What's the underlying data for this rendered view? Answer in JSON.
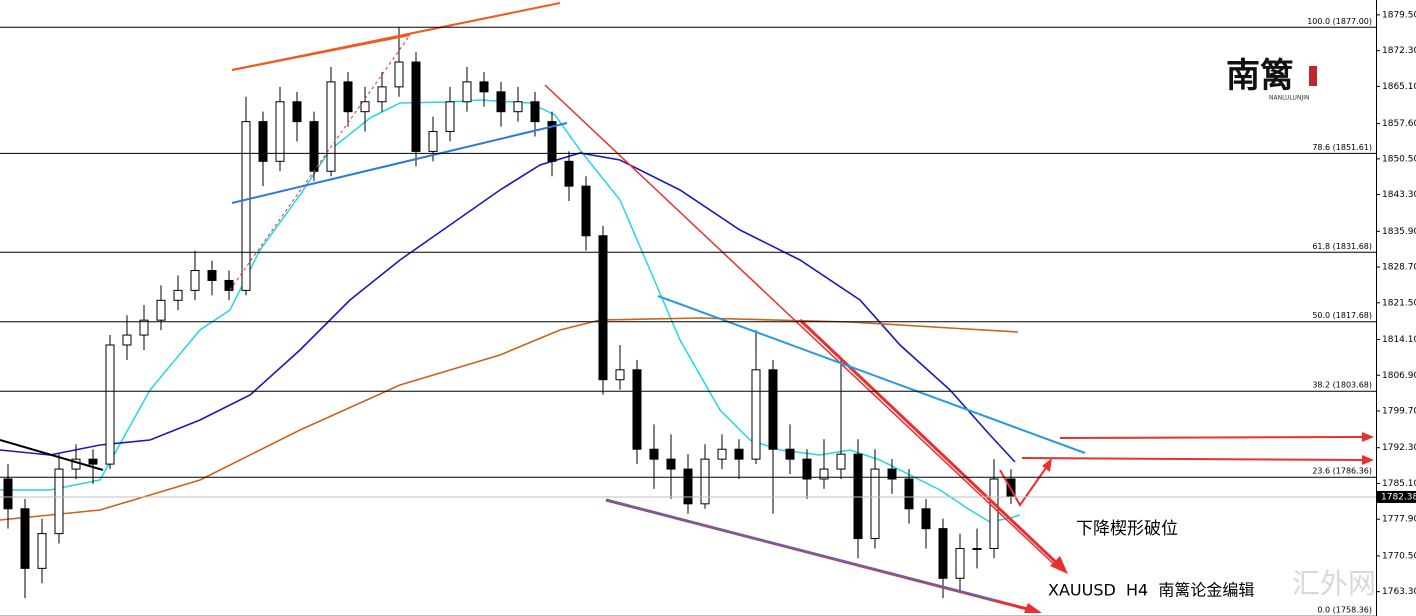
{
  "chart_data": {
    "type": "candlestick",
    "open": [
      1786,
      1780,
      1768,
      1775,
      1788,
      1790,
      1789,
      1813,
      1815,
      1818,
      1822,
      1824,
      1828,
      1826,
      1824,
      1858,
      1850,
      1862,
      1858,
      1848,
      1866,
      1860,
      1862,
      1865,
      1870,
      1852,
      1856,
      1862,
      1866,
      1864,
      1860,
      1862,
      1858,
      1850,
      1845,
      1835,
      1806,
      1808,
      1792,
      1790,
      1788,
      1781,
      1790,
      1792,
      1790,
      1808,
      1792,
      1790,
      1786,
      1788,
      1791,
      1774,
      1788,
      1786,
      1780,
      1776,
      1766,
      1772,
      1772,
      1786
    ],
    "high": [
      1789,
      1782,
      1778,
      1791,
      1793,
      1792,
      1815,
      1819,
      1821,
      1825,
      1827,
      1832,
      1830,
      1828,
      1863,
      1860,
      1865,
      1864,
      1860,
      1869,
      1868,
      1865,
      1868,
      1877,
      1872,
      1859,
      1865,
      1869,
      1868,
      1866,
      1865,
      1864,
      1860,
      1852,
      1847,
      1837,
      1813,
      1810,
      1797,
      1795,
      1791,
      1793,
      1795,
      1794,
      1816,
      1810,
      1797,
      1792,
      1794,
      1810,
      1794,
      1792,
      1790,
      1788,
      1782,
      1778,
      1775,
      1776,
      1790,
      1788
    ],
    "low": [
      1776,
      1762,
      1765,
      1773,
      1786,
      1785,
      1788,
      1810,
      1812,
      1816,
      1820,
      1822,
      1823,
      1822,
      1823,
      1845,
      1848,
      1854,
      1846,
      1847,
      1857,
      1856,
      1860,
      1863,
      1849,
      1850,
      1854,
      1860,
      1861,
      1857,
      1858,
      1855,
      1847,
      1842,
      1832,
      1803,
      1804,
      1789,
      1784,
      1782,
      1779,
      1780,
      1788,
      1786,
      1789,
      1779,
      1787,
      1782,
      1784,
      1786,
      1770,
      1772,
      1783,
      1777,
      1772,
      1762,
      1763,
      1768,
      1770,
      1781
    ],
    "close": [
      1780,
      1768,
      1775,
      1788,
      1790,
      1789,
      1813,
      1815,
      1818,
      1822,
      1824,
      1828,
      1826,
      1824,
      1858,
      1850,
      1862,
      1858,
      1848,
      1866,
      1860,
      1862,
      1865,
      1870,
      1852,
      1856,
      1862,
      1866,
      1864,
      1860,
      1862,
      1858,
      1850,
      1845,
      1835,
      1806,
      1808,
      1792,
      1790,
      1788,
      1781,
      1790,
      1792,
      1790,
      1808,
      1792,
      1790,
      1786,
      1788,
      1791,
      1774,
      1788,
      1786,
      1780,
      1776,
      1766,
      1772,
      1772,
      1786,
      1782.38
    ],
    "ylim": [
      1758.4,
      1882.5
    ],
    "yticks": [
      {
        "value": 1879.5,
        "label": "1879.50"
      },
      {
        "value": 1872.3,
        "label": "1872.30"
      },
      {
        "value": 1865.1,
        "label": "1865.10"
      },
      {
        "value": 1857.6,
        "label": "1857.60"
      },
      {
        "value": 1850.5,
        "label": "1850.50"
      },
      {
        "value": 1843.3,
        "label": "1843.30"
      },
      {
        "value": 1835.9,
        "label": "1835.90"
      },
      {
        "value": 1828.7,
        "label": "1828.70"
      },
      {
        "value": 1821.5,
        "label": "1821.50"
      },
      {
        "value": 1814.1,
        "label": "1814.10"
      },
      {
        "value": 1806.9,
        "label": "1806.90"
      },
      {
        "value": 1799.7,
        "label": "1799.70"
      },
      {
        "value": 1792.3,
        "label": "1792.30"
      },
      {
        "value": 1785.1,
        "label": "1785.10"
      },
      {
        "value": 1777.9,
        "label": "1777.90"
      },
      {
        "value": 1770.5,
        "label": "1770.50"
      },
      {
        "value": 1763.3,
        "label": "1763.30"
      }
    ],
    "fib_levels": [
      {
        "value": 1877.0,
        "label": "100.0 (1877.00)"
      },
      {
        "value": 1851.61,
        "label": "78.6 (1851.61)"
      },
      {
        "value": 1831.68,
        "label": "61.8 (1831.68)"
      },
      {
        "value": 1817.68,
        "label": "50.0 (1817.68)"
      },
      {
        "value": 1803.68,
        "label": "38.2 (1803.68)"
      },
      {
        "value": 1786.36,
        "label": "23.6 (1786.36)"
      },
      {
        "value": 1758.36,
        "label": "0.0 (1758.36)"
      }
    ],
    "current_price": {
      "value": 1782.38,
      "label": "1782.38"
    },
    "annotation": "下降楔形破位",
    "caption": "XAUUSD  H4  南篱论金编辑",
    "watermark": "汇外网",
    "logo": "南篱",
    "logo_subtitle": "NANLULUNJIN"
  }
}
